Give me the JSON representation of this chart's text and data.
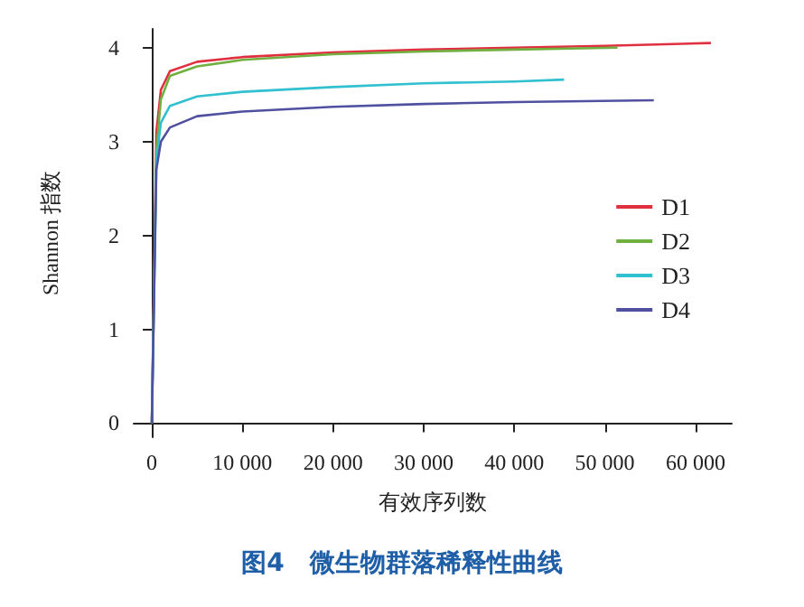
{
  "chart_data": {
    "type": "line",
    "title": "图4　微生物群落稀释性曲线",
    "xlabel": "有效序列数",
    "ylabel": "Shannon 指数",
    "xlim": [
      -2000,
      64000
    ],
    "ylim": [
      -0.15,
      4.2
    ],
    "xticks": [
      0,
      {
        "value": 10000,
        "label": "10 000"
      },
      {
        "value": 20000,
        "label": "20 000"
      },
      {
        "value": 30000,
        "label": "30 000"
      },
      {
        "value": 40000,
        "label": "40 000"
      },
      {
        "value": 50000,
        "label": "50 000"
      },
      {
        "value": 60000,
        "label": "60 000"
      }
    ],
    "yticks": [
      0,
      1,
      2,
      3,
      4
    ],
    "grid": false,
    "legend": "right",
    "marker": "none",
    "line_style": "solid",
    "series": [
      {
        "name": "D1",
        "color": "#e03040",
        "x": [
          0,
          500,
          1000,
          2000,
          5000,
          10000,
          20000,
          30000,
          40000,
          50000,
          61700
        ],
        "values": [
          0,
          3.1,
          3.55,
          3.75,
          3.85,
          3.9,
          3.95,
          3.98,
          4.0,
          4.02,
          4.05
        ]
      },
      {
        "name": "D2",
        "color": "#70b040",
        "x": [
          0,
          500,
          1000,
          2000,
          5000,
          10000,
          20000,
          30000,
          40000,
          51400
        ],
        "values": [
          0,
          2.9,
          3.45,
          3.7,
          3.8,
          3.87,
          3.93,
          3.96,
          3.98,
          4.0
        ]
      },
      {
        "name": "D3",
        "color": "#30c0d0",
        "x": [
          0,
          500,
          1000,
          2000,
          5000,
          10000,
          20000,
          30000,
          40000,
          45500
        ],
        "values": [
          0,
          2.8,
          3.2,
          3.38,
          3.48,
          3.53,
          3.58,
          3.62,
          3.64,
          3.66
        ]
      },
      {
        "name": "D4",
        "color": "#5050a0",
        "x": [
          0,
          500,
          1000,
          2000,
          5000,
          10000,
          20000,
          30000,
          40000,
          55400
        ],
        "values": [
          0,
          2.7,
          3.0,
          3.15,
          3.27,
          3.32,
          3.37,
          3.4,
          3.42,
          3.44
        ]
      }
    ]
  }
}
